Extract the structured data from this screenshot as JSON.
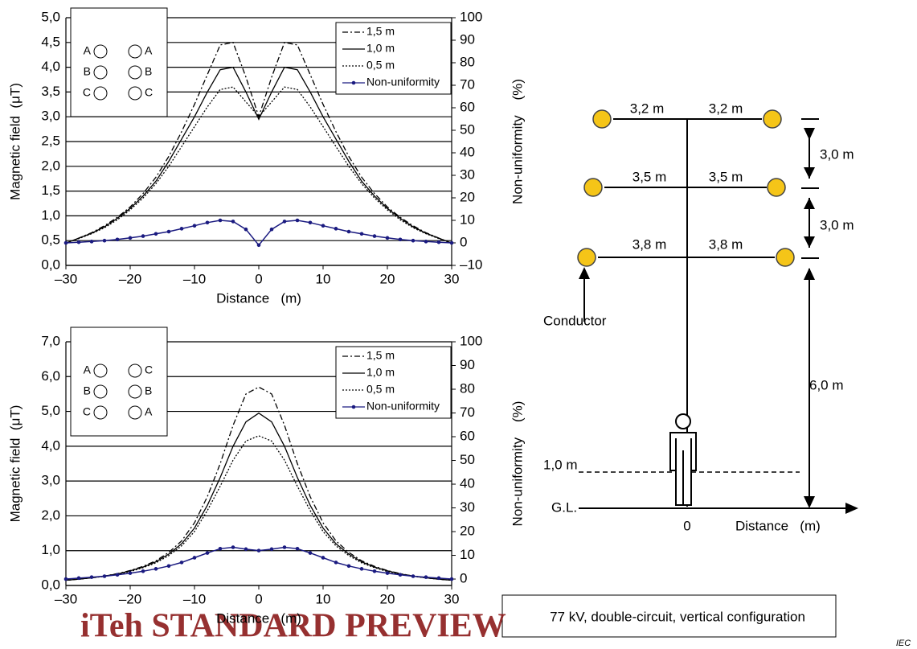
{
  "chart_data": [
    {
      "type": "line",
      "x_label": "Distance   (m)",
      "y_label": "Magnetic field  (μT)",
      "y2_label": "Non-uniformity    (%)",
      "x": [
        -30,
        -28,
        -26,
        -24,
        -22,
        -20,
        -18,
        -16,
        -14,
        -12,
        -10,
        -8,
        -6,
        -4,
        -2,
        0,
        2,
        4,
        6,
        8,
        10,
        12,
        14,
        16,
        18,
        20,
        22,
        24,
        26,
        28,
        30
      ],
      "xlim": [
        -30,
        30
      ],
      "xticks": [
        {
          "value": -30,
          "label": "–30"
        },
        {
          "value": -20,
          "label": "–20"
        },
        {
          "value": -10,
          "label": "–10"
        },
        0,
        10,
        20,
        30
      ],
      "ylim": [
        0,
        5
      ],
      "yticks": [
        {
          "value": 0,
          "label": "0,0"
        },
        {
          "value": 0.5,
          "label": "0,5"
        },
        {
          "value": 1,
          "label": "1,0"
        },
        {
          "value": 1.5,
          "label": "1,5"
        },
        {
          "value": 2,
          "label": "2,0"
        },
        {
          "value": 2.5,
          "label": "2,5"
        },
        {
          "value": 3,
          "label": "3,0"
        },
        {
          "value": 3.5,
          "label": "3,5"
        },
        {
          "value": 4,
          "label": "4,0"
        },
        {
          "value": 4.5,
          "label": "4,5"
        },
        {
          "value": 5,
          "label": "5,0"
        }
      ],
      "y2lim": [
        -10,
        100
      ],
      "y2ticks": [
        {
          "value": -10,
          "label": "–10"
        },
        0,
        10,
        20,
        30,
        40,
        50,
        60,
        70,
        80,
        90,
        100
      ],
      "grid": true,
      "legend": "upper right",
      "phases": {
        "left": [
          "A",
          "B",
          "C"
        ],
        "right": [
          "A",
          "B",
          "C"
        ]
      },
      "series": [
        {
          "name": "1,5 m",
          "color": "#000000",
          "style": "dashed",
          "values": [
            0.45,
            0.55,
            0.66,
            0.8,
            0.97,
            1.18,
            1.45,
            1.78,
            2.2,
            2.7,
            3.25,
            3.85,
            4.45,
            4.5,
            3.8,
            3.0,
            3.8,
            4.5,
            4.45,
            3.85,
            3.25,
            2.7,
            2.2,
            1.78,
            1.45,
            1.18,
            0.97,
            0.8,
            0.66,
            0.55,
            0.45
          ]
        },
        {
          "name": "1,0 m",
          "color": "#000000",
          "style": "solid",
          "values": [
            0.45,
            0.55,
            0.65,
            0.78,
            0.95,
            1.15,
            1.4,
            1.7,
            2.1,
            2.55,
            3.0,
            3.5,
            3.95,
            4.0,
            3.5,
            2.95,
            3.5,
            4.0,
            3.95,
            3.5,
            3.0,
            2.55,
            2.1,
            1.7,
            1.4,
            1.15,
            0.95,
            0.78,
            0.65,
            0.55,
            0.45
          ]
        },
        {
          "name": "0,5 m",
          "color": "#000000",
          "style": "dotted",
          "values": [
            0.45,
            0.54,
            0.64,
            0.76,
            0.92,
            1.12,
            1.36,
            1.65,
            2.0,
            2.4,
            2.8,
            3.2,
            3.55,
            3.6,
            3.3,
            3.0,
            3.3,
            3.6,
            3.55,
            3.2,
            2.8,
            2.4,
            2.0,
            1.65,
            1.36,
            1.12,
            0.92,
            0.76,
            0.64,
            0.54,
            0.45
          ]
        },
        {
          "name": "Non-uniformity",
          "color": "#1a1a80",
          "style": "solid",
          "marker": "dot",
          "axis": "y2",
          "values": [
            0,
            0.3,
            0.6,
            1,
            1.5,
            2.2,
            3,
            4,
            5,
            6.3,
            7.6,
            9,
            10,
            9.5,
            6,
            -1,
            6,
            9.5,
            10,
            9,
            7.6,
            6.3,
            5,
            4,
            3,
            2.2,
            1.5,
            1,
            0.6,
            0.3,
            0
          ]
        }
      ]
    },
    {
      "type": "line",
      "x_label": "Distance   (m)",
      "y_label": "Magnetic field  (μT)",
      "y2_label": "Non-uniformity    (%)",
      "x": [
        -30,
        -28,
        -26,
        -24,
        -22,
        -20,
        -18,
        -16,
        -14,
        -12,
        -10,
        -8,
        -6,
        -4,
        -2,
        0,
        2,
        4,
        6,
        8,
        10,
        12,
        14,
        16,
        18,
        20,
        22,
        24,
        26,
        28,
        30
      ],
      "xlim": [
        -30,
        30
      ],
      "xticks": [
        {
          "value": -30,
          "label": "–30"
        },
        {
          "value": -20,
          "label": "–20"
        },
        {
          "value": -10,
          "label": "–10"
        },
        0,
        10,
        20,
        30
      ],
      "ylim": [
        0,
        7
      ],
      "yticks": [
        {
          "value": 0,
          "label": "0,0"
        },
        {
          "value": 1,
          "label": "1,0"
        },
        {
          "value": 2,
          "label": "2,0"
        },
        {
          "value": 3,
          "label": "3,0"
        },
        {
          "value": 4,
          "label": "4,0"
        },
        {
          "value": 5,
          "label": "5,0"
        },
        {
          "value": 6,
          "label": "6,0"
        },
        {
          "value": 7,
          "label": "7,0"
        }
      ],
      "y2lim": [
        -2.7,
        100
      ],
      "y2ticks": [
        0,
        10,
        20,
        30,
        40,
        50,
        60,
        70,
        80,
        90,
        100
      ],
      "grid": true,
      "legend": "upper right",
      "phases": {
        "left": [
          "A",
          "B",
          "C"
        ],
        "right": [
          "C",
          "B",
          "A"
        ]
      },
      "series": [
        {
          "name": "1,5 m",
          "color": "#000000",
          "style": "dashed",
          "values": [
            0.15,
            0.18,
            0.22,
            0.27,
            0.34,
            0.43,
            0.55,
            0.71,
            0.95,
            1.28,
            1.8,
            2.55,
            3.5,
            4.6,
            5.5,
            5.7,
            5.5,
            4.6,
            3.5,
            2.55,
            1.8,
            1.28,
            0.95,
            0.71,
            0.55,
            0.43,
            0.34,
            0.27,
            0.22,
            0.18,
            0.15
          ]
        },
        {
          "name": "1,0 m",
          "color": "#000000",
          "style": "solid",
          "values": [
            0.15,
            0.18,
            0.22,
            0.27,
            0.33,
            0.42,
            0.53,
            0.68,
            0.9,
            1.2,
            1.65,
            2.3,
            3.1,
            4.0,
            4.7,
            4.95,
            4.7,
            4.0,
            3.1,
            2.3,
            1.65,
            1.2,
            0.9,
            0.68,
            0.53,
            0.42,
            0.33,
            0.27,
            0.22,
            0.18,
            0.15
          ]
        },
        {
          "name": "0,5 m",
          "color": "#000000",
          "style": "dotted",
          "values": [
            0.15,
            0.18,
            0.22,
            0.26,
            0.32,
            0.4,
            0.51,
            0.65,
            0.86,
            1.14,
            1.55,
            2.15,
            2.85,
            3.6,
            4.15,
            4.3,
            4.15,
            3.6,
            2.85,
            2.15,
            1.55,
            1.14,
            0.86,
            0.65,
            0.51,
            0.4,
            0.32,
            0.26,
            0.22,
            0.18,
            0.15
          ]
        },
        {
          "name": "Non-uniformity",
          "color": "#1a1a80",
          "style": "solid",
          "marker": "dot",
          "axis": "y2",
          "values": [
            0,
            0.4,
            0.8,
            1.2,
            1.8,
            2.5,
            3.3,
            4.3,
            5.5,
            7,
            9,
            11,
            12.8,
            13.4,
            12.6,
            12,
            12.6,
            13.4,
            12.8,
            11,
            9,
            7,
            5.5,
            4.3,
            3.3,
            2.5,
            1.8,
            1.2,
            0.8,
            0.4,
            0
          ]
        }
      ]
    }
  ],
  "diagram": {
    "spans": [
      [
        "3,2 m",
        "3,2 m"
      ],
      [
        "3,5 m",
        "3,5 m"
      ],
      [
        "3,8 m",
        "3,8 m"
      ]
    ],
    "gaps": [
      "3,0 m",
      "3,0 m"
    ],
    "height": "6,0 m",
    "observation": "1,0 m",
    "conductor": "Conductor",
    "ground": "G.L.",
    "origin": "0",
    "x_axis": "Distance   (m)"
  },
  "caption": "77 kV, double-circuit, vertical configuration",
  "source": "IEC",
  "watermark": "iTeh STANDARD PREVIEW"
}
